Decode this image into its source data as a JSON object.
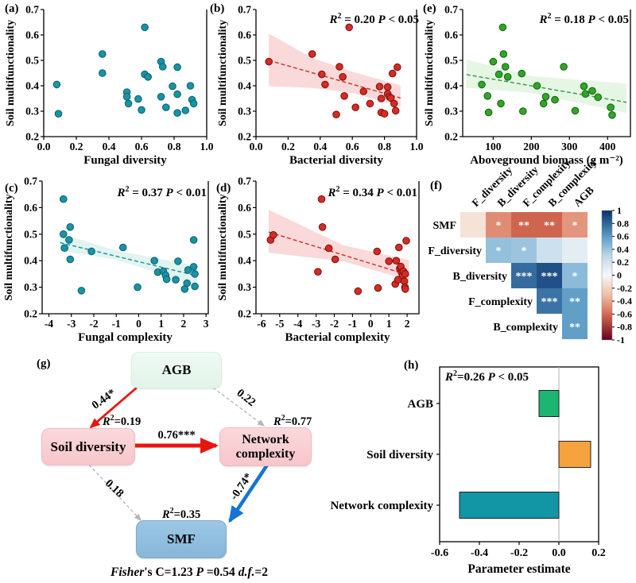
{
  "figure": {
    "panels": {
      "a": {
        "label": "(a)"
      },
      "b": {
        "label": "(b)"
      },
      "c": {
        "label": "(c)"
      },
      "d": {
        "label": "(d)"
      },
      "e": {
        "label": "(e)"
      },
      "f": {
        "label": "(f)"
      },
      "g": {
        "label": "(g)"
      },
      "h": {
        "label": "(h)"
      }
    }
  },
  "chart_data": [
    {
      "panel": "a",
      "type": "scatter",
      "xlabel": "Fungal diversity",
      "ylabel": "Soil multifunctionality",
      "xlim": [
        0,
        1
      ],
      "ylim": [
        0.2,
        0.7
      ],
      "xtick_vals": [
        0,
        0.2,
        0.4,
        0.6,
        0.8,
        1.0
      ],
      "xtick_labels": [
        "0.0",
        "0.2",
        "0.4",
        "0.6",
        "0.8",
        "1.0"
      ],
      "ytick_vals": [
        0.2,
        0.3,
        0.4,
        0.5,
        0.6,
        0.7
      ],
      "ytick_labels": [
        "0.2",
        "0.3",
        "0.4",
        "0.5",
        "0.6",
        "0.7"
      ],
      "colors": {
        "point": "#1794a6",
        "edge": "#0e5f6b"
      },
      "points": [
        [
          0.08,
          0.405
        ],
        [
          0.09,
          0.29
        ],
        [
          0.36,
          0.525
        ],
        [
          0.36,
          0.45
        ],
        [
          0.51,
          0.375
        ],
        [
          0.51,
          0.357
        ],
        [
          0.52,
          0.33
        ],
        [
          0.58,
          0.348
        ],
        [
          0.6,
          0.305
        ],
        [
          0.62,
          0.63
        ],
        [
          0.62,
          0.445
        ],
        [
          0.64,
          0.435
        ],
        [
          0.72,
          0.495
        ],
        [
          0.73,
          0.475
        ],
        [
          0.72,
          0.357
        ],
        [
          0.75,
          0.315
        ],
        [
          0.79,
          0.398
        ],
        [
          0.82,
          0.473
        ],
        [
          0.82,
          0.367
        ],
        [
          0.82,
          0.293
        ],
        [
          0.87,
          0.303
        ],
        [
          0.9,
          0.4
        ],
        [
          0.91,
          0.345
        ],
        [
          0.92,
          0.33
        ]
      ],
      "regression": null,
      "band": null,
      "annotation": null
    },
    {
      "panel": "b",
      "type": "scatter",
      "xlabel": "Bacterial diversity",
      "ylabel": "Soil multifunctionality",
      "xlim": [
        0,
        1
      ],
      "ylim": [
        0.2,
        0.7
      ],
      "xtick_vals": [
        0,
        0.2,
        0.4,
        0.6,
        0.8,
        1.0
      ],
      "xtick_labels": [
        "0.0",
        "0.2",
        "0.4",
        "0.6",
        "0.8",
        "1.0"
      ],
      "ytick_vals": [
        0.2,
        0.3,
        0.4,
        0.5,
        0.6,
        0.7
      ],
      "ytick_labels": [
        "0.2",
        "0.3",
        "0.4",
        "0.5",
        "0.6",
        "0.7"
      ],
      "colors": {
        "point": "#d52b24",
        "edge": "#7a100d",
        "line": "#d52b24",
        "band": "#f8cfcf"
      },
      "points": [
        [
          0.08,
          0.495
        ],
        [
          0.35,
          0.525
        ],
        [
          0.41,
          0.445
        ],
        [
          0.43,
          0.405
        ],
        [
          0.5,
          0.287
        ],
        [
          0.52,
          0.475
        ],
        [
          0.54,
          0.435
        ],
        [
          0.55,
          0.36
        ],
        [
          0.58,
          0.63
        ],
        [
          0.62,
          0.315
        ],
        [
          0.67,
          0.378
        ],
        [
          0.71,
          0.33
        ],
        [
          0.77,
          0.397
        ],
        [
          0.78,
          0.35
        ],
        [
          0.78,
          0.295
        ],
        [
          0.8,
          0.29
        ],
        [
          0.82,
          0.395
        ],
        [
          0.82,
          0.368
        ],
        [
          0.83,
          0.357
        ],
        [
          0.84,
          0.352
        ],
        [
          0.85,
          0.448
        ],
        [
          0.86,
          0.33
        ],
        [
          0.87,
          0.302
        ],
        [
          0.88,
          0.473
        ]
      ],
      "regression": {
        "x": [
          0.08,
          0.9
        ],
        "y": [
          0.5,
          0.352
        ]
      },
      "band": [
        [
          0.08,
          0.605
        ],
        [
          0.35,
          0.51
        ],
        [
          0.6,
          0.455
        ],
        [
          0.9,
          0.402
        ],
        [
          0.9,
          0.318
        ],
        [
          0.6,
          0.372
        ],
        [
          0.35,
          0.392
        ],
        [
          0.08,
          0.398
        ]
      ],
      "annotation": {
        "it1": "R",
        "sup": "2",
        "mid": " = 0.20 ",
        "it2": "P",
        "tail": " < 0.05"
      }
    },
    {
      "panel": "e",
      "type": "scatter",
      "xlabel": "Aboveground biomass (g m⁻²)",
      "ylabel": "Soil multifunctionality",
      "xlim": [
        20,
        460
      ],
      "ylim": [
        0.2,
        0.7
      ],
      "xtick_vals": [
        100,
        200,
        300,
        400
      ],
      "xtick_labels": [
        "100",
        "200",
        "300",
        "400"
      ],
      "ytick_vals": [
        0.2,
        0.3,
        0.4,
        0.5,
        0.6,
        0.7
      ],
      "ytick_labels": [
        "0.2",
        "0.3",
        "0.4",
        "0.5",
        "0.6",
        "0.7"
      ],
      "colors": {
        "point": "#2fa726",
        "edge": "#14610f",
        "line": "#379a35",
        "band": "#dff4dd"
      },
      "points": [
        [
          70,
          0.405
        ],
        [
          85,
          0.36
        ],
        [
          88,
          0.295
        ],
        [
          100,
          0.495
        ],
        [
          115,
          0.445
        ],
        [
          120,
          0.33
        ],
        [
          125,
          0.63
        ],
        [
          127,
          0.525
        ],
        [
          132,
          0.475
        ],
        [
          138,
          0.435
        ],
        [
          175,
          0.448
        ],
        [
          178,
          0.3
        ],
        [
          215,
          0.4
        ],
        [
          232,
          0.33
        ],
        [
          238,
          0.357
        ],
        [
          262,
          0.345
        ],
        [
          285,
          0.475
        ],
        [
          315,
          0.302
        ],
        [
          338,
          0.398
        ],
        [
          342,
          0.368
        ],
        [
          360,
          0.38
        ],
        [
          375,
          0.355
        ],
        [
          408,
          0.315
        ],
        [
          412,
          0.285
        ]
      ],
      "regression": {
        "x": [
          30,
          450
        ],
        "y": [
          0.444,
          0.335
        ]
      },
      "band": [
        [
          30,
          0.503
        ],
        [
          200,
          0.438
        ],
        [
          450,
          0.408
        ],
        [
          450,
          0.293
        ],
        [
          200,
          0.372
        ],
        [
          30,
          0.392
        ]
      ],
      "annotation": {
        "it1": "R",
        "sup": "2",
        "mid": " = 0.18 ",
        "it2": "P",
        "tail": " < 0.05"
      }
    },
    {
      "panel": "c",
      "type": "scatter",
      "xlabel": "Fungal complexity",
      "ylabel": "Soil multifunctionality",
      "xlim": [
        -4.3,
        3.1
      ],
      "ylim": [
        0.2,
        0.7
      ],
      "xtick_vals": [
        -4,
        -3,
        -2,
        -1,
        0,
        1,
        2,
        3
      ],
      "xtick_labels": [
        "-4",
        "-3",
        "-2",
        "-1",
        "0",
        "1",
        "2",
        "3"
      ],
      "ytick_vals": [
        0.2,
        0.3,
        0.4,
        0.5,
        0.6,
        0.7
      ],
      "ytick_labels": [
        "0.2",
        "0.3",
        "0.4",
        "0.5",
        "0.6",
        "0.7"
      ],
      "colors": {
        "point": "#1794a6",
        "edge": "#0e5f6b",
        "line": "#1a8f9e",
        "band": "#d9f1eb"
      },
      "points": [
        [
          -3.35,
          0.632
        ],
        [
          -3.35,
          0.5
        ],
        [
          -3.3,
          0.448
        ],
        [
          -3.1,
          0.478
        ],
        [
          -3.05,
          0.527
        ],
        [
          -3.05,
          0.405
        ],
        [
          -2.55,
          0.287
        ],
        [
          -2.1,
          0.435
        ],
        [
          -0.7,
          0.45
        ],
        [
          -0.05,
          0.3
        ],
        [
          0.7,
          0.4
        ],
        [
          0.85,
          0.357
        ],
        [
          1.1,
          0.36
        ],
        [
          1.2,
          0.345
        ],
        [
          1.25,
          0.33
        ],
        [
          1.65,
          0.328
        ],
        [
          1.75,
          0.398
        ],
        [
          2.05,
          0.293
        ],
        [
          2.15,
          0.315
        ],
        [
          2.2,
          0.365
        ],
        [
          2.45,
          0.478
        ],
        [
          2.45,
          0.377
        ],
        [
          2.5,
          0.35
        ],
        [
          2.5,
          0.303
        ]
      ],
      "regression": {
        "x": [
          -3.5,
          2.6
        ],
        "y": [
          0.468,
          0.343
        ]
      },
      "band": [
        [
          -3.5,
          0.503
        ],
        [
          -1.0,
          0.438
        ],
        [
          2.6,
          0.38
        ],
        [
          2.6,
          0.308
        ],
        [
          -1.0,
          0.404
        ],
        [
          -3.5,
          0.437
        ]
      ],
      "annotation": {
        "it1": "R",
        "sup": "2",
        "mid": " = 0.37 ",
        "it2": "P",
        "tail": " < 0.01"
      }
    },
    {
      "panel": "d",
      "type": "scatter",
      "xlabel": "Bacterial complexity",
      "ylabel": "Soil multifunctionality",
      "xlim": [
        -6.3,
        2.65
      ],
      "ylim": [
        0.2,
        0.7
      ],
      "xtick_vals": [
        -6,
        -5,
        -4,
        -3,
        -2,
        -1,
        0,
        1,
        2
      ],
      "xtick_labels": [
        "-6",
        "-5",
        "-4",
        "-3",
        "-2",
        "-1",
        "0",
        "1",
        "2"
      ],
      "ytick_vals": [
        0.2,
        0.3,
        0.4,
        0.5,
        0.6,
        0.7
      ],
      "ytick_labels": [
        "0.2",
        "0.3",
        "0.4",
        "0.5",
        "0.6",
        "0.7"
      ],
      "colors": {
        "point": "#d52b24",
        "edge": "#7a100d",
        "line": "#d52b24",
        "band": "#f8cfcf"
      },
      "points": [
        [
          -5.5,
          0.478
        ],
        [
          -5.35,
          0.497
        ],
        [
          -2.9,
          0.358
        ],
        [
          -2.7,
          0.632
        ],
        [
          -2.65,
          0.527
        ],
        [
          -2.3,
          0.447
        ],
        [
          -1.95,
          0.405
        ],
        [
          -0.7,
          0.285
        ],
        [
          0.35,
          0.435
        ],
        [
          0.4,
          0.297
        ],
        [
          1.0,
          0.398
        ],
        [
          1.35,
          0.312
        ],
        [
          1.4,
          0.4
        ],
        [
          1.5,
          0.328
        ],
        [
          1.55,
          0.45
        ],
        [
          1.6,
          0.37
        ],
        [
          1.65,
          0.378
        ],
        [
          1.7,
          0.355
        ],
        [
          1.75,
          0.345
        ],
        [
          1.8,
          0.36
        ],
        [
          1.85,
          0.322
        ],
        [
          1.88,
          0.3
        ],
        [
          1.9,
          0.293
        ],
        [
          1.95,
          0.475
        ],
        [
          1.9,
          0.35
        ]
      ],
      "regression": {
        "x": [
          -5.6,
          2.1
        ],
        "y": [
          0.508,
          0.345
        ]
      },
      "band": [
        [
          -5.6,
          0.592
        ],
        [
          -1.5,
          0.458
        ],
        [
          2.1,
          0.402
        ],
        [
          2.1,
          0.326
        ],
        [
          -1.5,
          0.398
        ],
        [
          -5.6,
          0.43
        ]
      ],
      "annotation": {
        "it1": "R",
        "sup": "2",
        "mid": " = 0.34 ",
        "it2": "P",
        "tail": " < 0.01"
      }
    },
    {
      "panel": "f",
      "type": "heatmap",
      "columns": [
        "F_diversity",
        "B_diversity",
        "F_complexity",
        "B_complexity",
        "AGB"
      ],
      "rows": [
        "SMF",
        "F_diversity",
        "B_diversity",
        "F_complexity",
        "B_complexity"
      ],
      "row_first_col": [
        0,
        1,
        2,
        3,
        4
      ],
      "cells": [
        {
          "r": 0,
          "c": 0,
          "v": -0.08,
          "stars": ""
        },
        {
          "r": 0,
          "c": 1,
          "v": -0.48,
          "stars": "*"
        },
        {
          "r": 0,
          "c": 2,
          "v": -0.62,
          "stars": "**"
        },
        {
          "r": 0,
          "c": 3,
          "v": -0.62,
          "stars": "**"
        },
        {
          "r": 0,
          "c": 4,
          "v": -0.45,
          "stars": "*"
        },
        {
          "r": 1,
          "c": 1,
          "v": 0.42,
          "stars": "*"
        },
        {
          "r": 1,
          "c": 2,
          "v": 0.4,
          "stars": "*"
        },
        {
          "r": 1,
          "c": 3,
          "v": 0.22,
          "stars": ""
        },
        {
          "r": 1,
          "c": 4,
          "v": 0.1,
          "stars": ""
        },
        {
          "r": 2,
          "c": 2,
          "v": 0.78,
          "stars": "***"
        },
        {
          "r": 2,
          "c": 3,
          "v": 0.88,
          "stars": "***"
        },
        {
          "r": 2,
          "c": 4,
          "v": 0.45,
          "stars": "*"
        },
        {
          "r": 3,
          "c": 3,
          "v": 0.75,
          "stars": "***"
        },
        {
          "r": 3,
          "c": 4,
          "v": 0.58,
          "stars": "**"
        },
        {
          "r": 4,
          "c": 4,
          "v": 0.58,
          "stars": "**"
        }
      ],
      "clim": [
        -1,
        1
      ],
      "colormap": {
        "positive": [
          [
            0,
            "#f7f7f7"
          ],
          [
            0.3,
            "#bdd8ea"
          ],
          [
            0.6,
            "#5a9bc7"
          ],
          [
            1,
            "#08306b"
          ]
        ],
        "negative": [
          [
            0,
            "#f9efe9"
          ],
          [
            0.3,
            "#f0bfa8"
          ],
          [
            0.6,
            "#d66a52"
          ],
          [
            1,
            "#67001f"
          ]
        ]
      },
      "colorbar_gradient": [
        [
          0,
          "#08306b"
        ],
        [
          0.2,
          "#5a9bc7"
        ],
        [
          0.35,
          "#bdd8ea"
        ],
        [
          0.5,
          "#f7f7f7"
        ],
        [
          0.65,
          "#f0bfa8"
        ],
        [
          0.8,
          "#d66a52"
        ],
        [
          1,
          "#67001f"
        ]
      ],
      "colorbar_ticks": [
        {
          "v": 1,
          "label": "1"
        },
        {
          "v": 0.8,
          "label": "0.8"
        },
        {
          "v": 0.6,
          "label": "0.6"
        },
        {
          "v": 0.4,
          "label": "0.4"
        },
        {
          "v": 0.2,
          "label": "0.2"
        },
        {
          "v": 0,
          "label": "0"
        },
        {
          "v": -0.2,
          "label": "-0.2"
        },
        {
          "v": -0.4,
          "label": "-0.4"
        },
        {
          "v": -0.6,
          "label": "-0.6"
        },
        {
          "v": -0.8,
          "label": "-0.8"
        },
        {
          "v": -1,
          "label": "-1"
        }
      ]
    },
    {
      "panel": "h",
      "type": "bar",
      "categories": [
        "AGB",
        "Soil diversity",
        "Network complexity"
      ],
      "values": [
        -0.1,
        0.16,
        -0.5
      ],
      "colors": [
        "#1cb574",
        "#f5a33f",
        "#1295a5"
      ],
      "xlim": [
        -0.6,
        0.2
      ],
      "xtick_vals": [
        -0.6,
        -0.4,
        -0.2,
        0.0,
        0.2
      ],
      "xtick_labels": [
        "-0.6",
        "-0.4",
        "-0.2",
        "0.0",
        "0.2"
      ],
      "xlabel": "Parameter estimate",
      "annotation": {
        "it1": "R",
        "sup": "2",
        "mid": "=0.26 ",
        "it2": "P",
        "tail": " < 0.05"
      }
    }
  ],
  "sem": {
    "nodes": [
      {
        "id": "agb",
        "label": "AGB"
      },
      {
        "id": "soil",
        "label": "Soil diversity",
        "r2": {
          "it": "R",
          "sup": "2",
          "val": "=0.19"
        }
      },
      {
        "id": "net",
        "label": "Network complexity",
        "r2": {
          "it": "R",
          "sup": "2",
          "val": "=0.77"
        }
      },
      {
        "id": "smf",
        "label": "SMF",
        "r2": {
          "it": "R",
          "sup": "2",
          "val": "=0.35"
        }
      }
    ],
    "edges": [
      {
        "id": "agb-soil",
        "label": "0.44*",
        "style": "solid",
        "color": "#e8150f",
        "width": 2.8
      },
      {
        "id": "agb-net",
        "label": "0.22",
        "style": "dashed",
        "color": "#b5b5b5",
        "width": 1.3
      },
      {
        "id": "soil-net",
        "label": "0.76***",
        "style": "solid",
        "color": "#e8150f",
        "width": 5
      },
      {
        "id": "net-smf",
        "label": "-0.74*",
        "style": "solid",
        "color": "#1576d2",
        "width": 4.5
      },
      {
        "id": "soil-smf",
        "label": "0.18",
        "style": "dashed",
        "color": "#b5b5b5",
        "width": 1.3
      }
    ],
    "fisher": {
      "it1": "Fisher",
      "t1": "'s C=1.23 ",
      "it2": "P",
      "t2": " =0.54 ",
      "it3": "d.f.",
      "t3": "=2"
    }
  }
}
